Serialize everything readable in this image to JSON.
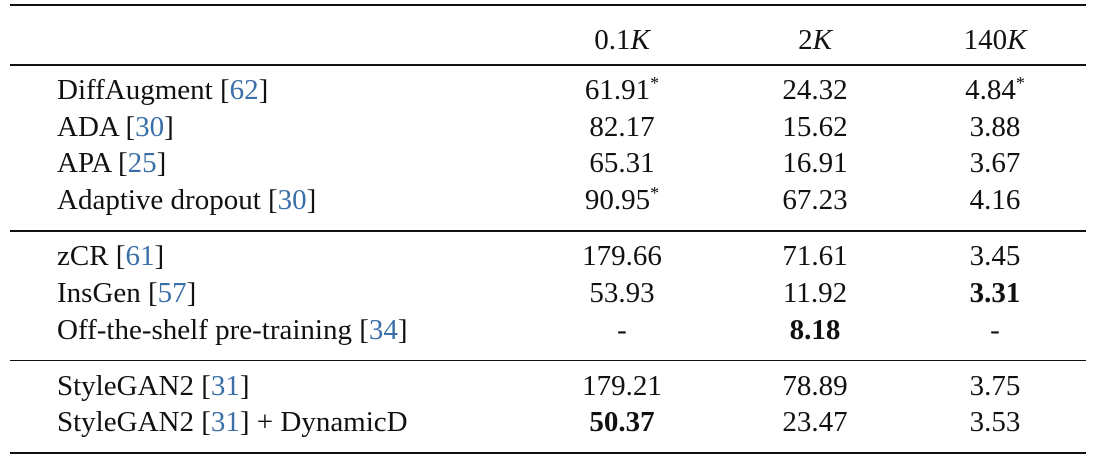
{
  "table": {
    "header": [
      {
        "num": "0.1",
        "var": "K"
      },
      {
        "num": "2",
        "var": "K"
      },
      {
        "num": "140",
        "var": "K"
      }
    ],
    "groups": [
      {
        "rows": [
          {
            "method": {
              "before": "DiffAugment [",
              "cite": "62",
              "after": "]"
            },
            "cells": [
              {
                "text": "61.91",
                "sup": "*"
              },
              {
                "text": "24.32"
              },
              {
                "text": "4.84",
                "sup": "*"
              }
            ]
          },
          {
            "method": {
              "before": "ADA [",
              "cite": "30",
              "after": "]"
            },
            "cells": [
              {
                "text": "82.17"
              },
              {
                "text": "15.62"
              },
              {
                "text": "3.88"
              }
            ]
          },
          {
            "method": {
              "before": "APA [",
              "cite": "25",
              "after": "]"
            },
            "cells": [
              {
                "text": "65.31"
              },
              {
                "text": "16.91"
              },
              {
                "text": "3.67"
              }
            ]
          },
          {
            "method": {
              "before": "Adaptive dropout [",
              "cite": "30",
              "after": "]"
            },
            "cells": [
              {
                "text": "90.95",
                "sup": "*"
              },
              {
                "text": "67.23"
              },
              {
                "text": "4.16"
              }
            ]
          }
        ]
      },
      {
        "rows": [
          {
            "method": {
              "before": "zCR [",
              "cite": "61",
              "after": "]"
            },
            "cells": [
              {
                "text": "179.66"
              },
              {
                "text": "71.61"
              },
              {
                "text": "3.45"
              }
            ]
          },
          {
            "method": {
              "before": "InsGen [",
              "cite": "57",
              "after": "]"
            },
            "cells": [
              {
                "text": "53.93"
              },
              {
                "text": "11.92"
              },
              {
                "text": "3.31",
                "bold": true
              }
            ]
          },
          {
            "method": {
              "before": "Off-the-shelf pre-training [",
              "cite": "34",
              "after": "]"
            },
            "cells": [
              {
                "text": "-"
              },
              {
                "text": "8.18",
                "bold": true
              },
              {
                "text": "-"
              }
            ]
          }
        ]
      },
      {
        "rows": [
          {
            "method": {
              "before": "StyleGAN2 [",
              "cite": "31",
              "after": "]"
            },
            "cells": [
              {
                "text": "179.21"
              },
              {
                "text": "78.89"
              },
              {
                "text": "3.75"
              }
            ]
          },
          {
            "method": {
              "before": "StyleGAN2 [",
              "cite": "31",
              "after": "] + DynamicD"
            },
            "cells": [
              {
                "text": "50.37",
                "bold": true
              },
              {
                "text": "23.47"
              },
              {
                "text": "3.53"
              }
            ]
          }
        ]
      }
    ]
  }
}
